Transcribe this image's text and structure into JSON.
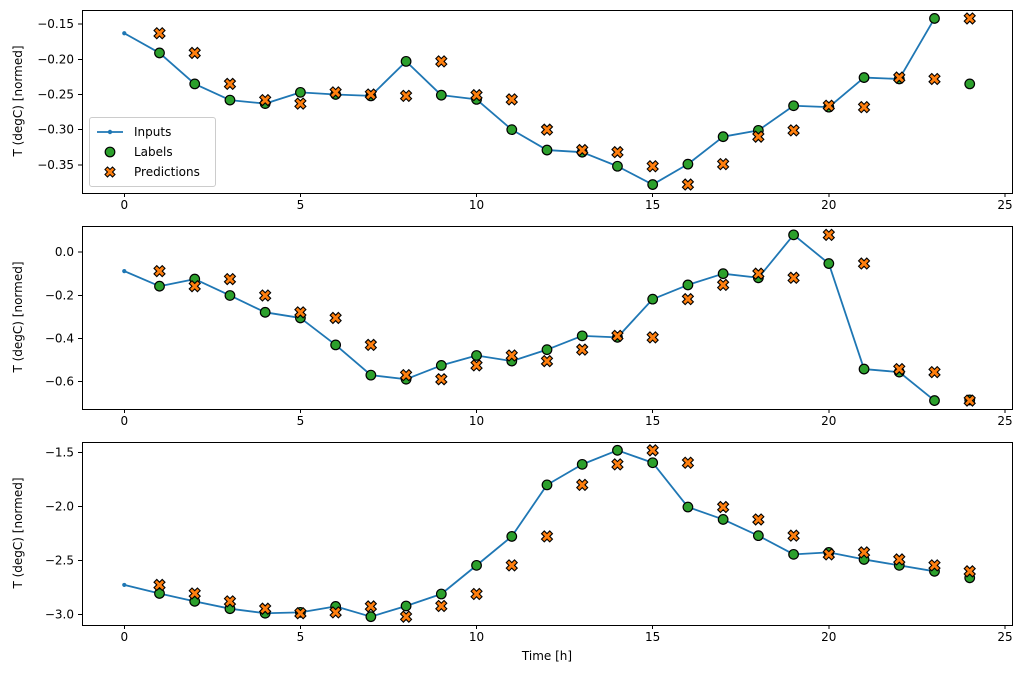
{
  "figure": {
    "title": "",
    "xlabel": "Time [h]",
    "ylabel": "T (degC) [normed]",
    "background": "#ffffff",
    "colors": {
      "inputs": "#1f77b4",
      "labels": "#2ca02c",
      "predictions": "#ff7f0e",
      "marker_edge": "#000000",
      "spine": "#000000",
      "tick_text": "#000000"
    },
    "legend": {
      "items": [
        {
          "label": "Inputs",
          "marker": "line-dot-sample"
        },
        {
          "label": "Labels",
          "marker": "circle-sample"
        },
        {
          "label": "Predictions",
          "marker": "x-sample"
        }
      ]
    }
  },
  "chart_data": [
    {
      "type": "line",
      "title": "",
      "xlabel": "",
      "ylabel": "T (degC) [normed]",
      "grid": false,
      "legend": true,
      "legend_position": "center-left",
      "xlim": [
        -1.2,
        25.2
      ],
      "ylim": [
        -0.39,
        -0.13
      ],
      "xticks": {
        "values": [
          0,
          5,
          10,
          15,
          20,
          25
        ],
        "labels": [
          "0",
          "5",
          "10",
          "15",
          "20",
          "25"
        ]
      },
      "yticks": {
        "values": [
          -0.15,
          -0.2,
          -0.25,
          -0.3,
          -0.35
        ],
        "labels": [
          "−0.15",
          "−0.20",
          "−0.25",
          "−0.30",
          "−0.35"
        ]
      },
      "series": [
        {
          "name": "Inputs",
          "style": "line-dot",
          "color_key": "inputs",
          "x": [
            0,
            1,
            2,
            3,
            4,
            5,
            6,
            7,
            8,
            9,
            10,
            11,
            12,
            13,
            14,
            15,
            16,
            17,
            18,
            19,
            20,
            21,
            22,
            23
          ],
          "y": [
            -0.163,
            -0.191,
            -0.235,
            -0.258,
            -0.263,
            -0.247,
            -0.25,
            -0.252,
            -0.203,
            -0.251,
            -0.257,
            -0.3,
            -0.329,
            -0.332,
            -0.352,
            -0.378,
            -0.349,
            -0.31,
            -0.301,
            -0.266,
            -0.268,
            -0.226,
            -0.228,
            -0.142
          ]
        },
        {
          "name": "Labels",
          "style": "circle",
          "color_key": "labels",
          "x": [
            1,
            2,
            3,
            4,
            5,
            6,
            7,
            8,
            9,
            10,
            11,
            12,
            13,
            14,
            15,
            16,
            17,
            18,
            19,
            20,
            21,
            22,
            23,
            24
          ],
          "y": [
            -0.191,
            -0.235,
            -0.258,
            -0.263,
            -0.247,
            -0.25,
            -0.252,
            -0.203,
            -0.251,
            -0.257,
            -0.3,
            -0.329,
            -0.332,
            -0.352,
            -0.378,
            -0.349,
            -0.31,
            -0.301,
            -0.266,
            -0.268,
            -0.226,
            -0.228,
            -0.142,
            -0.235
          ]
        },
        {
          "name": "Predictions",
          "style": "x",
          "color_key": "predictions",
          "x": [
            1,
            2,
            3,
            4,
            5,
            6,
            7,
            8,
            9,
            10,
            11,
            12,
            13,
            14,
            15,
            16,
            17,
            18,
            19,
            20,
            21,
            22,
            23,
            24
          ],
          "y": [
            -0.163,
            -0.191,
            -0.235,
            -0.258,
            -0.263,
            -0.247,
            -0.25,
            -0.252,
            -0.203,
            -0.251,
            -0.257,
            -0.3,
            -0.329,
            -0.332,
            -0.352,
            -0.378,
            -0.349,
            -0.31,
            -0.301,
            -0.266,
            -0.268,
            -0.226,
            -0.228,
            -0.142
          ]
        }
      ]
    },
    {
      "type": "line",
      "title": "",
      "xlabel": "",
      "ylabel": "T (degC) [normed]",
      "grid": false,
      "legend": false,
      "xlim": [
        -1.2,
        25.2
      ],
      "ylim": [
        -0.727,
        0.121
      ],
      "xticks": {
        "values": [
          0,
          5,
          10,
          15,
          20,
          25
        ],
        "labels": [
          "0",
          "5",
          "10",
          "15",
          "20",
          "25"
        ]
      },
      "yticks": {
        "values": [
          0.0,
          -0.2,
          -0.4,
          -0.6
        ],
        "labels": [
          "0.0",
          "−0.2",
          "−0.4",
          "−0.6"
        ]
      },
      "series": [
        {
          "name": "Inputs",
          "style": "line-dot",
          "color_key": "inputs",
          "x": [
            0,
            1,
            2,
            3,
            4,
            5,
            6,
            7,
            8,
            9,
            10,
            11,
            12,
            13,
            14,
            15,
            16,
            17,
            18,
            19,
            20,
            21,
            22,
            23
          ],
          "y": [
            -0.088,
            -0.158,
            -0.125,
            -0.201,
            -0.279,
            -0.305,
            -0.43,
            -0.57,
            -0.589,
            -0.525,
            -0.479,
            -0.505,
            -0.452,
            -0.388,
            -0.395,
            -0.218,
            -0.152,
            -0.1,
            -0.119,
            0.08,
            -0.053,
            -0.542,
            -0.556,
            -0.688
          ]
        },
        {
          "name": "Labels",
          "style": "circle",
          "color_key": "labels",
          "x": [
            1,
            2,
            3,
            4,
            5,
            6,
            7,
            8,
            9,
            10,
            11,
            12,
            13,
            14,
            15,
            16,
            17,
            18,
            19,
            20,
            21,
            22,
            23,
            24
          ],
          "y": [
            -0.158,
            -0.125,
            -0.201,
            -0.279,
            -0.305,
            -0.43,
            -0.57,
            -0.589,
            -0.525,
            -0.479,
            -0.505,
            -0.452,
            -0.388,
            -0.395,
            -0.218,
            -0.152,
            -0.1,
            -0.119,
            0.08,
            -0.053,
            -0.542,
            -0.556,
            -0.688,
            -0.685
          ]
        },
        {
          "name": "Predictions",
          "style": "x",
          "color_key": "predictions",
          "x": [
            1,
            2,
            3,
            4,
            5,
            6,
            7,
            8,
            9,
            10,
            11,
            12,
            13,
            14,
            15,
            16,
            17,
            18,
            19,
            20,
            21,
            22,
            23,
            24
          ],
          "y": [
            -0.088,
            -0.158,
            -0.125,
            -0.201,
            -0.279,
            -0.305,
            -0.43,
            -0.57,
            -0.589,
            -0.525,
            -0.479,
            -0.505,
            -0.452,
            -0.388,
            -0.395,
            -0.218,
            -0.152,
            -0.1,
            -0.119,
            0.08,
            -0.053,
            -0.542,
            -0.556,
            -0.688
          ]
        }
      ]
    },
    {
      "type": "line",
      "title": "",
      "xlabel": "Time [h]",
      "ylabel": "T (degC) [normed]",
      "grid": false,
      "legend": false,
      "xlim": [
        -1.2,
        25.2
      ],
      "ylim": [
        -3.097,
        -1.403
      ],
      "xticks": {
        "values": [
          0,
          5,
          10,
          15,
          20,
          25
        ],
        "labels": [
          "0",
          "5",
          "10",
          "15",
          "20",
          "25"
        ]
      },
      "yticks": {
        "values": [
          -1.5,
          -2.0,
          -2.5,
          -3.0
        ],
        "labels": [
          "−1.5",
          "−2.0",
          "−2.5",
          "−3.0"
        ]
      },
      "series": [
        {
          "name": "Inputs",
          "style": "line-dot",
          "color_key": "inputs",
          "x": [
            0,
            1,
            2,
            3,
            4,
            5,
            6,
            7,
            8,
            9,
            10,
            11,
            12,
            13,
            14,
            15,
            16,
            17,
            18,
            19,
            20,
            21,
            22,
            23
          ],
          "y": [
            -2.726,
            -2.805,
            -2.878,
            -2.946,
            -2.988,
            -2.98,
            -2.925,
            -3.02,
            -2.921,
            -2.81,
            -2.545,
            -2.277,
            -1.8,
            -1.61,
            -1.48,
            -1.595,
            -2.005,
            -2.12,
            -2.27,
            -2.443,
            -2.425,
            -2.49,
            -2.545,
            -2.6
          ]
        },
        {
          "name": "Labels",
          "style": "circle",
          "color_key": "labels",
          "x": [
            1,
            2,
            3,
            4,
            5,
            6,
            7,
            8,
            9,
            10,
            11,
            12,
            13,
            14,
            15,
            16,
            17,
            18,
            19,
            20,
            21,
            22,
            23,
            24
          ],
          "y": [
            -2.805,
            -2.878,
            -2.946,
            -2.988,
            -2.98,
            -2.925,
            -3.02,
            -2.921,
            -2.81,
            -2.545,
            -2.277,
            -1.8,
            -1.61,
            -1.48,
            -1.595,
            -2.005,
            -2.12,
            -2.27,
            -2.443,
            -2.425,
            -2.49,
            -2.545,
            -2.6,
            -2.66
          ]
        },
        {
          "name": "Predictions",
          "style": "x",
          "color_key": "predictions",
          "x": [
            1,
            2,
            3,
            4,
            5,
            6,
            7,
            8,
            9,
            10,
            11,
            12,
            13,
            14,
            15,
            16,
            17,
            18,
            19,
            20,
            21,
            22,
            23,
            24
          ],
          "y": [
            -2.726,
            -2.805,
            -2.878,
            -2.946,
            -2.988,
            -2.98,
            -2.925,
            -3.02,
            -2.921,
            -2.81,
            -2.545,
            -2.277,
            -1.8,
            -1.61,
            -1.48,
            -1.595,
            -2.005,
            -2.12,
            -2.27,
            -2.443,
            -2.425,
            -2.49,
            -2.545,
            -2.6
          ]
        }
      ]
    }
  ]
}
